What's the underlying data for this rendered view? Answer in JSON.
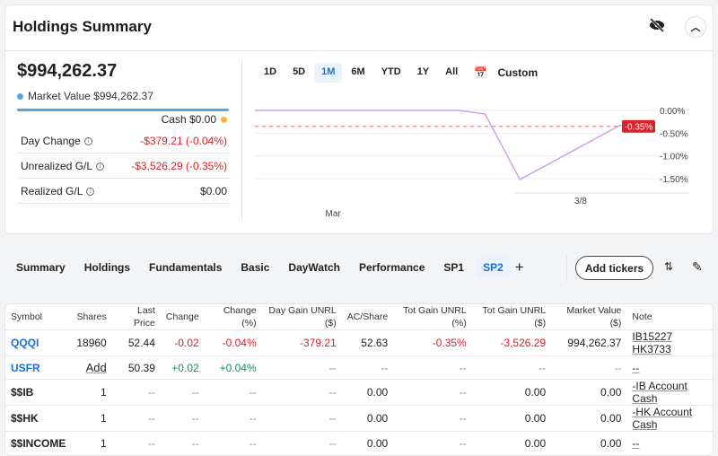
{
  "header": {
    "title": "Holdings Summary",
    "hide_icon": "eye-off-icon",
    "collapse_icon": "chevron-up-icon"
  },
  "summary": {
    "total": "$994,262.37",
    "market_value": "Market Value $994,262.37",
    "cash": "Cash $0.00",
    "colors": {
      "market": "#5aa6dc",
      "cash": "#f5b942",
      "negative": "#d8232a",
      "positive": "#1a8a5a"
    },
    "rows": [
      {
        "label": "Day Change",
        "value": "-$379.21 (-0.04%)",
        "tone": "neg"
      },
      {
        "label": "Unrealized G/L",
        "value": "-$3,526.29 (-0.35%)",
        "tone": "neg"
      },
      {
        "label": "Realized G/L",
        "value": "$0.00",
        "tone": ""
      }
    ]
  },
  "ranges": [
    "1D",
    "5D",
    "1M",
    "6M",
    "YTD",
    "1Y",
    "All"
  ],
  "active_range": "1M",
  "custom_label": "Custom",
  "chart_data": {
    "type": "line",
    "x_domain": [
      0,
      100
    ],
    "x": [
      0,
      47,
      53,
      61,
      84,
      92
    ],
    "values": [
      0.0,
      0.0,
      -0.08,
      -1.52,
      -0.33,
      -0.35
    ],
    "ylim": [
      -1.75,
      0.1
    ],
    "yticks": [
      0,
      -0.5,
      -1.0,
      -1.5
    ],
    "ytick_labels": [
      "0.00%",
      "-0.50%",
      "-1.00%",
      "-1.50%"
    ],
    "xtick_labels": [
      {
        "label": "Mar",
        "x": 18
      },
      {
        "label": "3/8",
        "x": 75
      }
    ],
    "reference_value": -0.35,
    "reference_label": "-0.35%",
    "line_color": "#c9a0ec",
    "ref_color": "#d8232a"
  },
  "tabs": [
    "Summary",
    "Holdings",
    "Fundamentals",
    "Basic",
    "DayWatch",
    "Performance",
    "SP1",
    "SP2"
  ],
  "active_tab": "SP2",
  "add_tab": "+",
  "add_tickers": "Add tickers",
  "table": {
    "headers": [
      "Symbol",
      "Shares",
      "Last Price",
      "Change",
      "Change (%)",
      "Day Gain UNRL ($)",
      "AC/Share",
      "Tot Gain UNRL (%)",
      "Tot Gain UNRL ($)",
      "Market Value ($)",
      "Note"
    ],
    "rows": [
      [
        "QQQI",
        "18960",
        "52.44",
        "-0.02",
        "-0.04%",
        "-379.21",
        "52.63",
        "-0.35%",
        "-3,526.29",
        "994,262.37",
        "IB15227 HK3733"
      ],
      [
        "USFR",
        "Add",
        "50.39",
        "+0.02",
        "+0.04%",
        "--",
        "--",
        "--",
        "--",
        "--",
        "--"
      ],
      [
        "$$IB",
        "1",
        "--",
        "--",
        "--",
        "--",
        "0.00",
        "--",
        "0.00",
        "0.00",
        "-IB Account Cash"
      ],
      [
        "$$HK",
        "1",
        "--",
        "--",
        "--",
        "--",
        "0.00",
        "--",
        "0.00",
        "0.00",
        "-HK Account Cash"
      ],
      [
        "$$INCOME",
        "1",
        "--",
        "--",
        "--",
        "--",
        "0.00",
        "--",
        "0.00",
        "0.00",
        "--"
      ]
    ]
  }
}
